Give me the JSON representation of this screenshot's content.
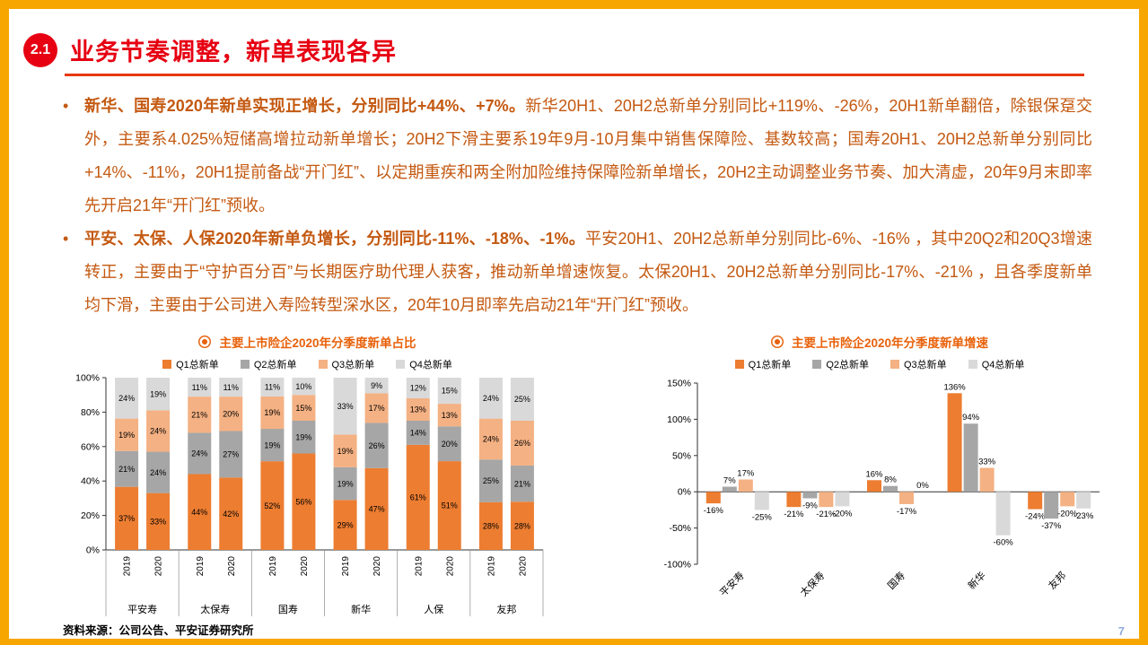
{
  "theme": {
    "background_orange": "#F7A600",
    "panel_white": "#FFFFFF",
    "title_red": "#E60012",
    "rule_red": "#E8380D",
    "body_text_orange": "#C45911",
    "chart_title_orange": "#E8610A",
    "page_number_blue": "#8FAADC"
  },
  "page": {
    "badge": "2.1",
    "title": "业务节奏调整，新单表现各异",
    "footer_source": "资料来源：公司公告、平安证券研究所",
    "page_number": "7"
  },
  "bullets": [
    {
      "bold": "新华、国寿2020年新单实现正增长，分别同比+44%、+7%。",
      "text": "新华20H1、20H2总新单分别同比+119%、-26%，20H1新单翻倍，除银保趸交外，主要系4.025%短储高增拉动新单增长；20H2下滑主要系19年9月-10月集中销售保障险、基数较高；国寿20H1、20H2总新单分别同比+14%、-11%，20H1提前备战“开门红”、以定期重疾和两全附加险维持保障险新单增长，20H2主动调整业务节奏、加大清虚，20年9月末即率先开启21年“开门红”预收。"
    },
    {
      "bold": "平安、太保、人保2020年新单负增长，分别同比-11%、-18%、-1%。",
      "text": "平安20H1、20H2总新单分别同比-6%、-16% ，其中20Q2和20Q3增速转正，主要由于“守护百分百”与长期医疗助代理人获客，推动新单增速恢复。太保20H1、20H2总新单分别同比-17%、-21% ，且各季度新单均下滑，主要由于公司进入寿险转型深水区，20年10月即率先启动21年“开门红”预收。"
    }
  ],
  "chart_data": [
    {
      "type": "bar",
      "subtype": "stacked_100",
      "title": "主要上市险企2020年分季度新单占比",
      "companies": [
        "平安寿",
        "太保寿",
        "国寿",
        "新华",
        "人保",
        "友邦"
      ],
      "years": [
        "2019",
        "2020"
      ],
      "series": [
        {
          "name": "Q1总新单",
          "color": "#ED7D31",
          "values": [
            37,
            33,
            44,
            42,
            52,
            56,
            29,
            47,
            61,
            51,
            28,
            28
          ]
        },
        {
          "name": "Q2总新单",
          "color": "#A6A6A6",
          "values": [
            21,
            24,
            24,
            27,
            19,
            19,
            19,
            26,
            14,
            20,
            25,
            21
          ]
        },
        {
          "name": "Q3总新单",
          "color": "#F4B183",
          "values": [
            19,
            24,
            21,
            20,
            19,
            15,
            19,
            17,
            13,
            13,
            24,
            26
          ]
        },
        {
          "name": "Q4总新单",
          "color": "#D9D9D9",
          "values": [
            24,
            19,
            11,
            11,
            11,
            10,
            33,
            9,
            12,
            15,
            24,
            25
          ]
        }
      ],
      "unit": "%",
      "ylim": [
        0,
        100
      ],
      "y_ticks": [
        "0%",
        "20%",
        "40%",
        "60%",
        "80%",
        "100%"
      ],
      "grid": false,
      "legend_position": "top"
    },
    {
      "type": "bar",
      "subtype": "grouped",
      "title": "主要上市险企2020年分季度新单增速",
      "companies": [
        "平安寿",
        "太保寿",
        "国寿",
        "新华",
        "友邦"
      ],
      "series": [
        {
          "name": "Q1总新单",
          "color": "#ED7D31",
          "values": [
            -16,
            -21,
            16,
            136,
            -24
          ]
        },
        {
          "name": "Q2总新单",
          "color": "#A6A6A6",
          "values": [
            7,
            -9,
            8,
            94,
            -37
          ]
        },
        {
          "name": "Q3总新单",
          "color": "#F4B183",
          "values": [
            17,
            -21,
            -17,
            33,
            -20
          ]
        },
        {
          "name": "Q4总新单",
          "color": "#D9D9D9",
          "values": [
            -25,
            -20,
            0,
            -60,
            -23
          ]
        }
      ],
      "unit": "%",
      "ylim": [
        -100,
        150
      ],
      "y_ticks": [
        -100,
        -50,
        0,
        50,
        100,
        150
      ],
      "grid": false,
      "legend_position": "top"
    }
  ]
}
